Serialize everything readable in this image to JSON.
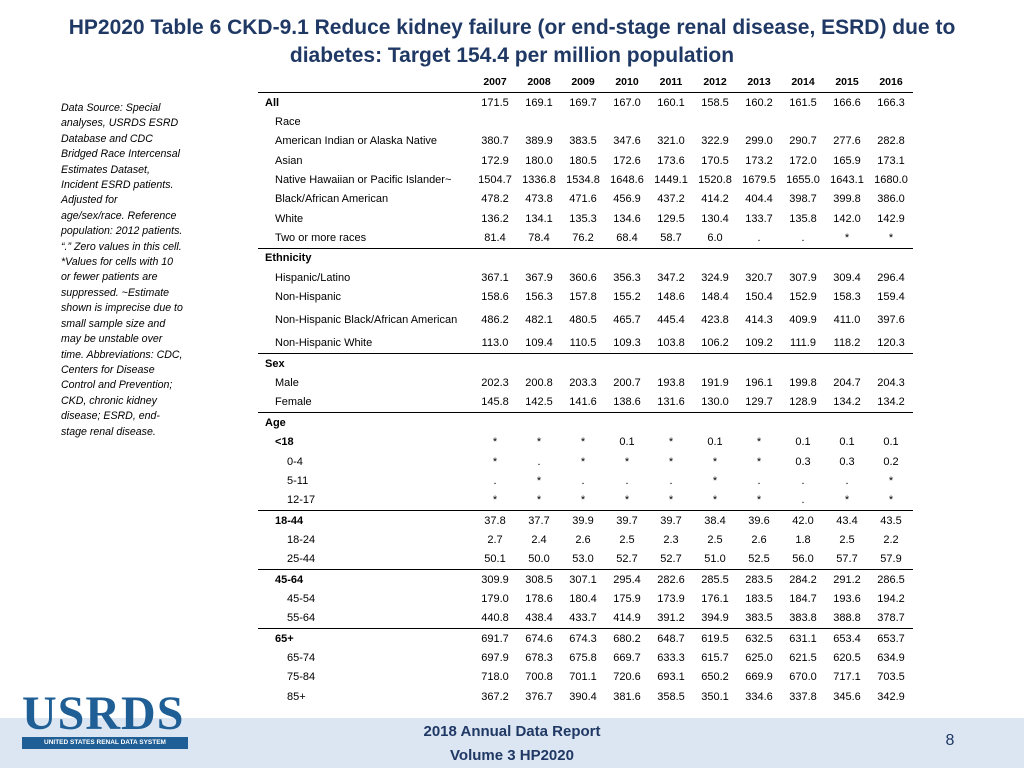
{
  "title": "HP2020 Table 6 CKD-9.1 Reduce kidney failure (or end-stage renal disease, ESRD) due to diabetes: Target 154.4 per million population",
  "note": "Data Source: Special analyses, USRDS ESRD Database and CDC Bridged Race Intercensal Estimates Dataset, Incident ESRD patients. Adjusted for age/sex/race. Reference population: 2012 patients. “.” Zero values in this cell. *Values for cells with 10 or fewer patients are suppressed. ~Estimate shown is imprecise due to small sample size and may be unstable over time. Abbreviations: CDC, Centers for Disease Control and Prevention; CKD, chronic kidney disease; ESRD, end-stage renal disease.",
  "table": {
    "years": [
      "2007",
      "2008",
      "2009",
      "2010",
      "2011",
      "2012",
      "2013",
      "2014",
      "2015",
      "2016"
    ],
    "rows": [
      {
        "label": "All",
        "level": "lv0",
        "top": true,
        "values": [
          "171.5",
          "169.1",
          "169.7",
          "167.0",
          "160.1",
          "158.5",
          "160.2",
          "161.5",
          "166.6",
          "166.3"
        ]
      },
      {
        "label": "Race",
        "level": "lv1",
        "values": []
      },
      {
        "label": "American Indian or Alaska Native",
        "level": "lv1",
        "values": [
          "380.7",
          "389.9",
          "383.5",
          "347.6",
          "321.0",
          "322.9",
          "299.0",
          "290.7",
          "277.6",
          "282.8"
        ]
      },
      {
        "label": "Asian",
        "level": "lv1",
        "values": [
          "172.9",
          "180.0",
          "180.5",
          "172.6",
          "173.6",
          "170.5",
          "173.2",
          "172.0",
          "165.9",
          "173.1"
        ]
      },
      {
        "label": "Native Hawaiian or Pacific Islander~",
        "level": "lv1",
        "values": [
          "1504.7",
          "1336.8",
          "1534.8",
          "1648.6",
          "1449.1",
          "1520.8",
          "1679.5",
          "1655.0",
          "1643.1",
          "1680.0"
        ]
      },
      {
        "label": "Black/African American",
        "level": "lv1",
        "values": [
          "478.2",
          "473.8",
          "471.6",
          "456.9",
          "437.2",
          "414.2",
          "404.4",
          "398.7",
          "399.8",
          "386.0"
        ]
      },
      {
        "label": "White",
        "level": "lv1",
        "values": [
          "136.2",
          "134.1",
          "135.3",
          "134.6",
          "129.5",
          "130.4",
          "133.7",
          "135.8",
          "142.0",
          "142.9"
        ]
      },
      {
        "label": "Two or more races",
        "level": "lv1",
        "values": [
          "81.4",
          "78.4",
          "76.2",
          "68.4",
          "58.7",
          "6.0",
          ".",
          ".",
          "*",
          "*"
        ]
      },
      {
        "label": "Ethnicity",
        "level": "lv0",
        "top": true,
        "values": []
      },
      {
        "label": "Hispanic/Latino",
        "level": "lv1",
        "values": [
          "367.1",
          "367.9",
          "360.6",
          "356.3",
          "347.2",
          "324.9",
          "320.7",
          "307.9",
          "309.4",
          "296.4"
        ]
      },
      {
        "label": "Non-Hispanic",
        "level": "lv1",
        "values": [
          "158.6",
          "156.3",
          "157.8",
          "155.2",
          "148.6",
          "148.4",
          "150.4",
          "152.9",
          "158.3",
          "159.4"
        ]
      },
      {
        "label": "Non-Hispanic Black/African American",
        "level": "lv1",
        "tall": true,
        "values": [
          "486.2",
          "482.1",
          "480.5",
          "465.7",
          "445.4",
          "423.8",
          "414.3",
          "409.9",
          "411.0",
          "397.6"
        ]
      },
      {
        "label": "Non-Hispanic White",
        "level": "lv1",
        "values": [
          "113.0",
          "109.4",
          "110.5",
          "109.3",
          "103.8",
          "106.2",
          "109.2",
          "111.9",
          "118.2",
          "120.3"
        ]
      },
      {
        "label": "Sex",
        "level": "lv0",
        "top": true,
        "values": []
      },
      {
        "label": "Male",
        "level": "lv1",
        "values": [
          "202.3",
          "200.8",
          "203.3",
          "200.7",
          "193.8",
          "191.9",
          "196.1",
          "199.8",
          "204.7",
          "204.3"
        ]
      },
      {
        "label": "Female",
        "level": "lv1",
        "values": [
          "145.8",
          "142.5",
          "141.6",
          "138.6",
          "131.6",
          "130.0",
          "129.7",
          "128.9",
          "134.2",
          "134.2"
        ]
      },
      {
        "label": "Age",
        "level": "lv0",
        "top": true,
        "values": []
      },
      {
        "label": "<18",
        "level": "lv1b",
        "values": [
          "*",
          "*",
          "*",
          "0.1",
          "*",
          "0.1",
          "*",
          "0.1",
          "0.1",
          "0.1"
        ]
      },
      {
        "label": "0-4",
        "level": "lv2",
        "values": [
          "*",
          ".",
          "*",
          "*",
          "*",
          "*",
          "*",
          "0.3",
          "0.3",
          "0.2"
        ]
      },
      {
        "label": "5-11",
        "level": "lv2",
        "values": [
          ".",
          "*",
          ".",
          ".",
          ".",
          "*",
          ".",
          ".",
          ".",
          "*"
        ]
      },
      {
        "label": "12-17",
        "level": "lv2",
        "values": [
          "*",
          "*",
          "*",
          "*",
          "*",
          "*",
          "*",
          ".",
          "*",
          "*"
        ]
      },
      {
        "label": "18-44",
        "level": "lv1b",
        "top": true,
        "values": [
          "37.8",
          "37.7",
          "39.9",
          "39.7",
          "39.7",
          "38.4",
          "39.6",
          "42.0",
          "43.4",
          "43.5"
        ]
      },
      {
        "label": "18-24",
        "level": "lv2",
        "values": [
          "2.7",
          "2.4",
          "2.6",
          "2.5",
          "2.3",
          "2.5",
          "2.6",
          "1.8",
          "2.5",
          "2.2"
        ]
      },
      {
        "label": "25-44",
        "level": "lv2",
        "values": [
          "50.1",
          "50.0",
          "53.0",
          "52.7",
          "52.7",
          "51.0",
          "52.5",
          "56.0",
          "57.7",
          "57.9"
        ]
      },
      {
        "label": "45-64",
        "level": "lv1b",
        "top": true,
        "values": [
          "309.9",
          "308.5",
          "307.1",
          "295.4",
          "282.6",
          "285.5",
          "283.5",
          "284.2",
          "291.2",
          "286.5"
        ]
      },
      {
        "label": "45-54",
        "level": "lv2",
        "values": [
          "179.0",
          "178.6",
          "180.4",
          "175.9",
          "173.9",
          "176.1",
          "183.5",
          "184.7",
          "193.6",
          "194.2"
        ]
      },
      {
        "label": "55-64",
        "level": "lv2",
        "values": [
          "440.8",
          "438.4",
          "433.7",
          "414.9",
          "391.2",
          "394.9",
          "383.5",
          "383.8",
          "388.8",
          "378.7"
        ]
      },
      {
        "label": "65+",
        "level": "lv1b",
        "top": true,
        "values": [
          "691.7",
          "674.6",
          "674.3",
          "680.2",
          "648.7",
          "619.5",
          "632.5",
          "631.1",
          "653.4",
          "653.7"
        ]
      },
      {
        "label": "65-74",
        "level": "lv2",
        "values": [
          "697.9",
          "678.3",
          "675.8",
          "669.7",
          "633.3",
          "615.7",
          "625.0",
          "621.5",
          "620.5",
          "634.9"
        ]
      },
      {
        "label": "75-84",
        "level": "lv2",
        "values": [
          "718.0",
          "700.8",
          "701.1",
          "720.6",
          "693.1",
          "650.2",
          "669.9",
          "670.0",
          "717.1",
          "703.5"
        ]
      },
      {
        "label": "85+",
        "level": "lv2",
        "values": [
          "367.2",
          "376.7",
          "390.4",
          "381.6",
          "358.5",
          "350.1",
          "334.6",
          "337.8",
          "345.6",
          "342.9"
        ]
      }
    ]
  },
  "footer": {
    "line1": "2018 Annual Data Report",
    "line2": "Volume 3 HP2020",
    "page_number": "8"
  },
  "logo": {
    "main": "USRDS",
    "sub": "UNITED STATES RENAL DATA SYSTEM"
  }
}
